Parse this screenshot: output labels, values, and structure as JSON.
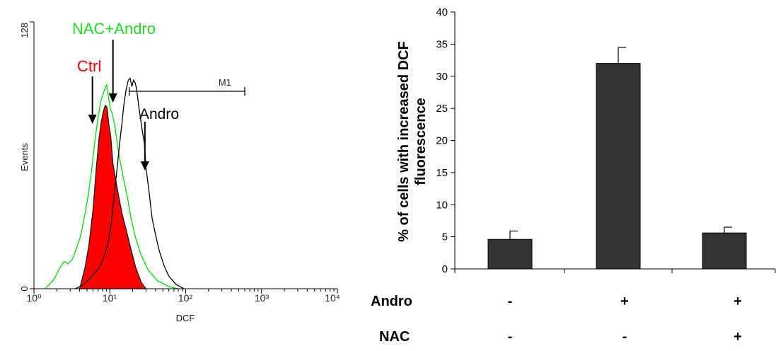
{
  "chart_data": [
    {
      "type": "area",
      "xlabel": "DCF",
      "ylabel": "Events",
      "x_scale": "log",
      "xlim": [
        1,
        10000
      ],
      "ylim": [
        0,
        128
      ],
      "x_tick_labels": [
        "10⁰",
        "10¹",
        "10²",
        "10³",
        "10⁴"
      ],
      "y_tick_labels": [
        "0",
        "128"
      ],
      "marker": {
        "label": "M1",
        "range": [
          18,
          600
        ]
      },
      "annotations": [
        {
          "text": "Ctrl",
          "color": "#ff0000",
          "points_to": 5.9
        },
        {
          "text": "NAC+Andro",
          "color": "#00dd00",
          "points_to": 11
        },
        {
          "text": "Andro",
          "color": "#000000",
          "points_to": 29
        }
      ],
      "series": [
        {
          "name": "Ctrl",
          "style": "filled",
          "color": "#ff0000",
          "x": [
            4,
            4.7,
            5.3,
            6,
            6.6,
            7.2,
            7.7,
            8.2,
            8.7,
            9.2,
            9.7,
            10.3,
            11,
            12,
            13,
            14.5,
            16.5,
            19,
            22,
            26,
            30
          ],
          "y": [
            0,
            10,
            21,
            38,
            57,
            72,
            80,
            85,
            88,
            87,
            79,
            73,
            60,
            52,
            45,
            36,
            28,
            19,
            10,
            3,
            0
          ]
        },
        {
          "name": "NAC+Andro",
          "style": "line",
          "color": "#00dd00",
          "x": [
            1.4,
            1.8,
            2.2,
            2.5,
            2.8,
            3.2,
            3.6,
            4.1,
            4.6,
            5.2,
            5.8,
            6.4,
            7,
            7.6,
            8.1,
            8.6,
            9.1,
            9.6,
            10.2,
            10.8,
            11.5,
            12.3,
            13.2,
            14.2,
            15.5,
            17,
            19,
            22,
            26,
            32,
            42,
            60,
            80
          ],
          "y": [
            0,
            4,
            10,
            13,
            12,
            14,
            19,
            25,
            34,
            45,
            58,
            72,
            82,
            90,
            93,
            96,
            98,
            92,
            86,
            84,
            79,
            72,
            64,
            58,
            51,
            44,
            34,
            24,
            16,
            9,
            4,
            1,
            0
          ]
        },
        {
          "name": "Andro",
          "style": "line",
          "color": "#000000",
          "x": [
            3.5,
            4.5,
            5.5,
            6.5,
            7.5,
            8.5,
            9.5,
            10.5,
            11.5,
            12.5,
            13.5,
            14.5,
            15.5,
            16.5,
            17.5,
            18.5,
            19.5,
            20.5,
            21.5,
            22.5,
            24,
            25.5,
            27,
            28.5,
            30,
            33,
            36,
            40,
            45,
            52,
            60,
            75,
            95
          ],
          "y": [
            0,
            2,
            5,
            8,
            11,
            16,
            22,
            32,
            46,
            58,
            70,
            80,
            90,
            96,
            100,
            101,
            97,
            100,
            99,
            96,
            88,
            81,
            75,
            70,
            58,
            46,
            34,
            26,
            18,
            11,
            6,
            2,
            0
          ]
        }
      ]
    },
    {
      "type": "bar",
      "ylabel": "% of cells with increased DCF fluorescence",
      "ylabel_lines": [
        "% of cells with increased DCF",
        "fluorescence"
      ],
      "ylim": [
        0,
        40
      ],
      "y_tick_labels": [
        "0",
        "5",
        "10",
        "15",
        "20",
        "25",
        "30",
        "35",
        "40"
      ],
      "bar_color": "#333333",
      "values": [
        4.6,
        32,
        5.6
      ],
      "errors": [
        1.3,
        2.5,
        0.9
      ],
      "conditions": [
        {
          "label": "Andro",
          "marks": [
            "-",
            "+",
            "+"
          ]
        },
        {
          "label": "NAC",
          "marks": [
            "-",
            "-",
            "+"
          ]
        }
      ]
    }
  ]
}
